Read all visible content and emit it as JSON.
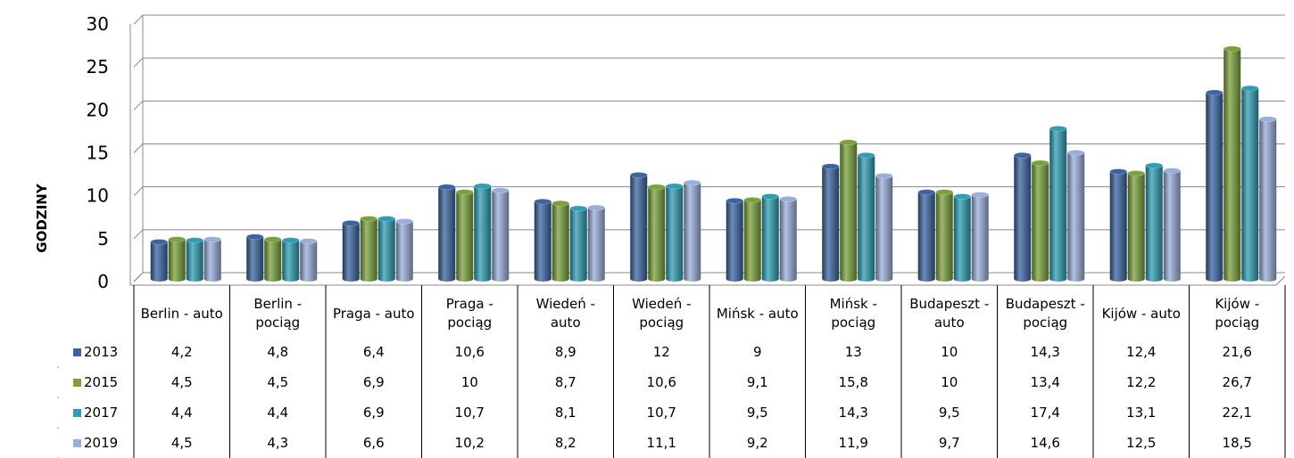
{
  "chart_data": {
    "type": "bar",
    "y_label": "GODZINY",
    "categories": [
      "Berlin - auto",
      "Berlin - pociąg",
      "Praga - auto",
      "Praga - pociąg",
      "Wiedeń - auto",
      "Wiedeń - pociąg",
      "Mińsk - auto",
      "Mińsk - pociąg",
      "Budapeszt -auto",
      "Budapeszt - pociąg",
      "Kijów - auto",
      "Kijów - pociąg"
    ],
    "series": [
      {
        "name": "2013",
        "color": "#3b64a0",
        "values": [
          4.2,
          4.8,
          6.4,
          10.6,
          8.9,
          12,
          9,
          13,
          10,
          14.3,
          12.4,
          21.6
        ],
        "value_labels": [
          "4,2",
          "4,8",
          "6,4",
          "10,6",
          "8,9",
          "12",
          "9",
          "13",
          "10",
          "14,3",
          "12,4",
          "21,6"
        ]
      },
      {
        "name": "2015",
        "color": "#7aa23a",
        "values": [
          4.5,
          4.5,
          6.9,
          10,
          8.7,
          10.6,
          9.1,
          15.8,
          10,
          13.4,
          12.2,
          26.7
        ],
        "value_labels": [
          "4,5",
          "4,5",
          "6,9",
          "10",
          "8,7",
          "10,6",
          "9,1",
          "15,8",
          "10",
          "13,4",
          "12,2",
          "26,7"
        ]
      },
      {
        "name": "2017",
        "color": "#2f9db3",
        "values": [
          4.4,
          4.4,
          6.9,
          10.7,
          8.1,
          10.7,
          9.5,
          14.3,
          9.5,
          17.4,
          13.1,
          22.1
        ],
        "value_labels": [
          "4,4",
          "4,4",
          "6,9",
          "10,7",
          "8,1",
          "10,7",
          "9,5",
          "14,3",
          "9,5",
          "17,4",
          "13,1",
          "22,1"
        ]
      },
      {
        "name": "2019",
        "color": "#99aedb",
        "values": [
          4.5,
          4.3,
          6.6,
          10.2,
          8.2,
          11.1,
          9.2,
          11.9,
          9.7,
          14.6,
          12.5,
          18.5
        ],
        "value_labels": [
          "4,5",
          "4,3",
          "6,6",
          "10,2",
          "8,2",
          "11,1",
          "9,2",
          "11,9",
          "9,7",
          "14,6",
          "12,5",
          "18,5"
        ]
      }
    ],
    "ylim": [
      0,
      30
    ],
    "yticks": [
      0,
      5,
      10,
      15,
      20,
      25,
      30
    ],
    "grid": true
  }
}
